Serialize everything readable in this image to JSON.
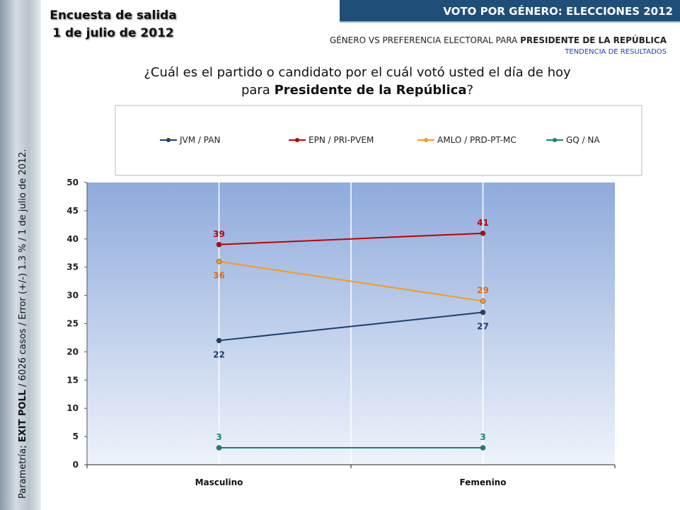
{
  "header": {
    "title_line1": "Encuesta de salida",
    "title_line2": "1 de julio de 2012",
    "banner": "VOTO POR GÉNERO: ELECCIONES 2012",
    "subtitle_prefix": "GÉNERO VS PREFERENCIA ELECTORAL PARA ",
    "subtitle_bold": "PRESIDENTE DE LA REPÚBLICA",
    "trend": "TENDENCIA DE RESULTADOS",
    "question_line1": "¿Cuál es el partido o candidato por el cuál votó usted el día de hoy",
    "question_prefix": "para ",
    "question_bold": "Presidente de la República",
    "question_suffix": "?"
  },
  "source": {
    "prefix": "Parametría; ",
    "bold": "EXIT POLL",
    "suffix": " / 6026 casos / Error (+/-) 1.3 % / 1 de julio de 2012."
  },
  "chart_data": {
    "type": "line",
    "categories": [
      "Masculino",
      "Femenino"
    ],
    "series": [
      {
        "name": "JVM / PAN",
        "color": "#1f3e6e",
        "values": [
          22,
          27
        ]
      },
      {
        "name": "EPN / PRI-PVEM",
        "color": "#c00000",
        "values": [
          39,
          41
        ]
      },
      {
        "name": "AMLO / PRD-PT-MC",
        "color": "#f79a1e",
        "values": [
          36,
          29
        ]
      },
      {
        "name": "GQ / NA",
        "color": "#16837a",
        "values": [
          3,
          3
        ]
      }
    ],
    "ylim": [
      0,
      50
    ],
    "yticks": [
      0,
      5,
      10,
      15,
      20,
      25,
      30,
      35,
      40,
      45,
      50
    ],
    "legend": "top"
  }
}
